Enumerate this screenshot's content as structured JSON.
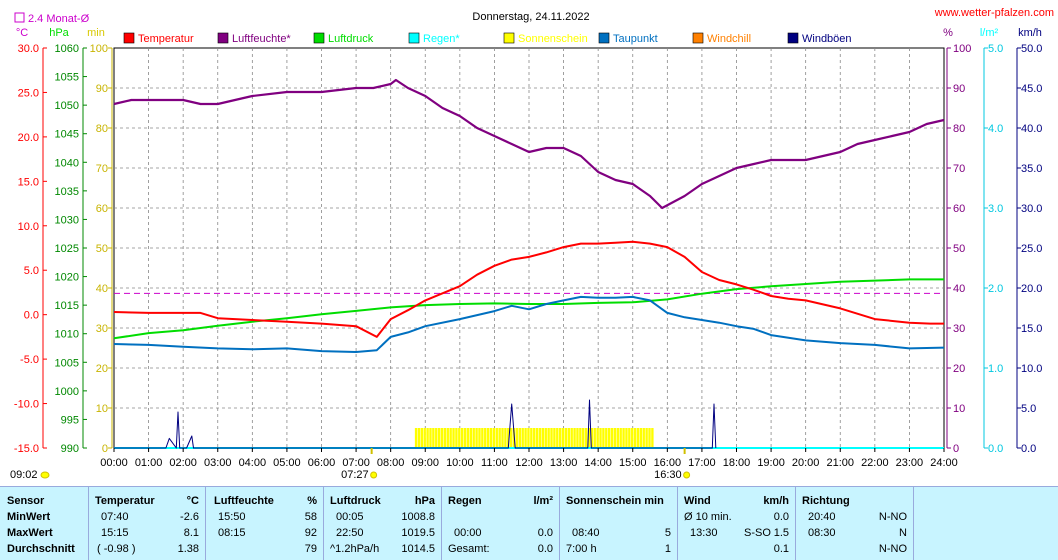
{
  "title": "Donnerstag, 24.11.2022",
  "site": "www.wetter-pfalzen.com",
  "monthly_avg_label": "2.4 Monat-Ø",
  "sunrise": "07:27",
  "sunset": "16:30",
  "time_now": "09:02",
  "colors": {
    "temperature": "#ff0000",
    "humidity": "#800080",
    "pressure": "#00dd00",
    "rain": "#00ffff",
    "sunshine": "#ffff00",
    "dewpoint": "#0070c0",
    "windchill": "#ff8000",
    "gust": "#000080",
    "monthavg": "#cc00cc"
  },
  "chart_data": {
    "type": "line",
    "title": "Donnerstag, 24.11.2022",
    "legend": [
      {
        "name": "Temperatur",
        "color": "#ff0000"
      },
      {
        "name": "Luftfeuchte*",
        "color": "#800080"
      },
      {
        "name": "Luftdruck",
        "color": "#00dd00"
      },
      {
        "name": "Regen*",
        "color": "#00ffff"
      },
      {
        "name": "Sonnenschein",
        "color": "#ffff00"
      },
      {
        "name": "Taupunkt",
        "color": "#0070c0"
      },
      {
        "name": "Windchill",
        "color": "#ff8000"
      },
      {
        "name": "Windböen",
        "color": "#000080"
      }
    ],
    "x_ticks": [
      "00:00",
      "01:00",
      "02:00",
      "03:00",
      "04:00",
      "05:00",
      "06:00",
      "07:00",
      "08:00",
      "09:00",
      "10:00",
      "11:00",
      "12:00",
      "13:00",
      "14:00",
      "15:00",
      "16:00",
      "17:00",
      "18:00",
      "19:00",
      "20:00",
      "21:00",
      "22:00",
      "23:00",
      "24:00"
    ],
    "axes": {
      "temp": {
        "unit": "°C",
        "min": -15,
        "max": 30,
        "ticks": [
          "30.0",
          "25.0",
          "20.0",
          "15.0",
          "10.0",
          "5.0",
          "0.0",
          "-5.0",
          "-10.0",
          "-15.0"
        ]
      },
      "pressure": {
        "unit": "hPa",
        "min": 990,
        "max": 1060,
        "ticks": [
          "1060",
          "1055",
          "1050",
          "1045",
          "1040",
          "1035",
          "1030",
          "1025",
          "1020",
          "1015",
          "1010",
          "1005",
          "1000",
          "995",
          "990"
        ]
      },
      "sun": {
        "unit": "min",
        "min": 0,
        "max": 100,
        "ticks": [
          "100",
          "90",
          "80",
          "70",
          "60",
          "50",
          "40",
          "30",
          "20",
          "10",
          "0"
        ]
      },
      "humidity": {
        "unit": "%",
        "min": 0,
        "max": 100,
        "ticks": [
          "100",
          "90",
          "80",
          "70",
          "60",
          "50",
          "40",
          "30",
          "20",
          "10",
          "0"
        ]
      },
      "rain": {
        "unit": "l/m²",
        "min": 0,
        "max": 5,
        "ticks": [
          "5.0",
          "4.0",
          "3.0",
          "2.0",
          "1.0",
          "0.0"
        ]
      },
      "wind": {
        "unit": "km/h",
        "min": 0,
        "max": 50,
        "ticks": [
          "50.0",
          "45.0",
          "40.0",
          "35.0",
          "30.0",
          "25.0",
          "20.0",
          "15.0",
          "10.0",
          "5.0",
          "0.0"
        ]
      }
    },
    "monthly_avg_temp": 2.4,
    "series": [
      {
        "name": "Temperatur",
        "x": [
          0,
          1,
          2,
          2.5,
          3,
          4,
          5,
          6,
          7,
          7.6,
          8,
          8.5,
          9,
          9.5,
          10,
          10.5,
          11,
          11.5,
          12,
          12.5,
          13,
          13.5,
          14,
          14.5,
          15,
          15.5,
          16,
          16.5,
          17,
          17.5,
          18,
          18.5,
          19,
          19.5,
          20,
          21,
          22,
          23,
          23.6,
          24
        ],
        "values": [
          0.3,
          0.2,
          0.2,
          0.2,
          -0.4,
          -0.6,
          -0.8,
          -1.0,
          -1.3,
          -2.5,
          -0.5,
          0.5,
          1.6,
          2.4,
          3.2,
          4.5,
          5.5,
          6.2,
          6.5,
          7.0,
          7.6,
          8.0,
          8.0,
          8.1,
          8.2,
          8.0,
          7.6,
          6.5,
          4.8,
          3.9,
          3.4,
          2.8,
          2.1,
          1.8,
          1.6,
          0.7,
          -0.5,
          -0.9,
          -1.0,
          -1.0
        ]
      },
      {
        "name": "Luftfeuchte*",
        "x": [
          0,
          0.5,
          1,
          1.5,
          2,
          2.5,
          3,
          3.5,
          4,
          5,
          6,
          7,
          7.5,
          8,
          8.15,
          8.5,
          9,
          9.5,
          10,
          10.5,
          11,
          11.5,
          12,
          12.5,
          13,
          13.5,
          14,
          14.5,
          15,
          15.5,
          15.85,
          16.5,
          17,
          17.5,
          18,
          18.5,
          19,
          19.5,
          20,
          20.5,
          21,
          21.5,
          22,
          22.5,
          23,
          23.5,
          24
        ],
        "values": [
          86,
          87,
          87,
          87,
          87,
          86,
          86,
          87,
          88,
          89,
          89,
          90,
          90,
          91,
          92,
          90,
          88,
          85,
          83,
          80,
          78,
          76,
          74,
          75,
          75,
          73,
          69,
          67,
          66,
          63,
          60,
          63,
          66,
          68,
          70,
          71,
          72,
          72,
          72,
          73,
          74,
          76,
          77,
          78,
          79,
          81,
          82
        ]
      },
      {
        "name": "Luftdruck",
        "x": [
          0,
          1,
          2,
          3,
          4,
          5,
          6,
          7,
          8,
          9,
          10,
          11,
          12,
          13,
          14,
          15,
          16,
          17,
          18,
          19,
          20,
          21,
          22,
          23,
          24
        ],
        "values": [
          1009.2,
          1010.1,
          1010.6,
          1011.4,
          1012.1,
          1012.7,
          1013.4,
          1014.0,
          1014.6,
          1015.0,
          1015.2,
          1015.3,
          1015.2,
          1015.2,
          1015.4,
          1015.5,
          1016.0,
          1017.0,
          1017.8,
          1018.3,
          1018.7,
          1019.1,
          1019.3,
          1019.5,
          1019.5
        ]
      },
      {
        "name": "Taupunkt",
        "x": [
          0,
          1,
          2,
          3,
          4,
          5,
          6,
          7,
          7.6,
          8,
          8.5,
          9,
          10,
          11,
          11.5,
          12,
          12.5,
          13,
          13.5,
          14,
          14.5,
          15,
          15.5,
          16,
          16.5,
          17,
          17.5,
          18,
          18.5,
          19,
          19.5,
          20,
          21,
          22,
          23,
          24
        ],
        "values": [
          -3.3,
          -3.4,
          -3.6,
          -3.8,
          -3.9,
          -3.8,
          -4.1,
          -4.2,
          -4.0,
          -2.5,
          -2.0,
          -1.3,
          -0.5,
          0.4,
          1.0,
          0.6,
          1.2,
          1.6,
          2.0,
          1.9,
          1.9,
          2.0,
          1.6,
          0.2,
          -0.3,
          -0.6,
          -0.9,
          -1.3,
          -1.6,
          -2.3,
          -2.6,
          -2.9,
          -3.2,
          -3.4,
          -3.8,
          -3.7
        ]
      },
      {
        "name": "Windböen",
        "x": [
          0,
          1.5,
          1.6,
          1.8,
          1.85,
          1.9,
          2.1,
          2.25,
          2.3,
          11.4,
          11.5,
          11.6,
          13.7,
          13.75,
          13.8,
          17.3,
          17.35,
          17.4
        ],
        "values": [
          0,
          0,
          1.2,
          0,
          4.5,
          0,
          0,
          1.5,
          0,
          0,
          5.5,
          0,
          0,
          6.0,
          0,
          0,
          5.5,
          0
        ]
      },
      {
        "name": "Sonnenschein",
        "x": [
          8.7,
          15.6
        ],
        "values": [
          5,
          5
        ]
      },
      {
        "name": "Regen*",
        "x": [
          0,
          24
        ],
        "values": [
          0,
          0
        ]
      }
    ]
  },
  "stats": {
    "headers": {
      "sensor": "Sensor",
      "temp": "Temperatur",
      "temp_unit": "°C",
      "hum": "Luftfeuchte",
      "hum_unit": "%",
      "press": "Luftdruck",
      "press_unit": "hPa",
      "rain": "Regen",
      "rain_unit": "l/m²",
      "sun": "Sonnenschein min",
      "wind": "Wind",
      "wind_unit": "km/h",
      "dir": "Richtung"
    },
    "rows": [
      {
        "label": "MinWert",
        "temp_time": "07:40",
        "temp_val": "-2.6",
        "hum_time": "15:50",
        "hum_val": "58",
        "press_time": "00:05",
        "press_val": "1008.8",
        "rain_time": "",
        "rain_val": "",
        "sun_time": "",
        "sun_val": "",
        "wind_time": "Ø 10 min.",
        "wind_dir": "",
        "wind_val": "0.0",
        "dir_time": "20:40",
        "dir_val": "N-NO"
      },
      {
        "label": "MaxWert",
        "temp_time": "15:15",
        "temp_val": "8.1",
        "hum_time": "08:15",
        "hum_val": "92",
        "press_time": "22:50",
        "press_val": "1019.5",
        "rain_time": "00:00",
        "rain_val": "0.0",
        "sun_time": "08:40",
        "sun_val": "5",
        "wind_time": "13:30",
        "wind_dir": "S-SO",
        "wind_val": "1.5",
        "dir_time": "08:30",
        "dir_val": "N"
      },
      {
        "label": "Durchschnitt",
        "temp_time": "( -0.98 )",
        "temp_val": "1.38",
        "hum_time": "",
        "hum_val": "79",
        "press_time": "^1.2hPa/h",
        "press_val": "1014.5",
        "rain_time": "Gesamt:",
        "rain_val": "0.0",
        "sun_time": "7:00 h",
        "sun_val": "1",
        "wind_time": "",
        "wind_dir": "",
        "wind_val": "0.1",
        "dir_time": "",
        "dir_val": "N-NO"
      }
    ]
  }
}
